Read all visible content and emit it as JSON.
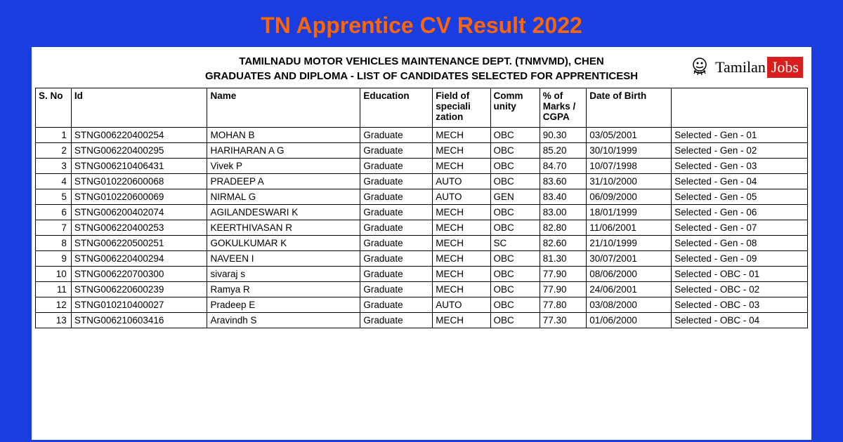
{
  "page_title": "TN Apprentice CV Result 2022",
  "doc_header_line1": "TAMILNADU MOTOR VEHICLES MAINTENANCE DEPT. (TNMVMD), CHEN",
  "doc_header_line2": "GRADUATES AND DIPLOMA - LIST OF CANDIDATES SELECTED FOR APPRENTICESH",
  "logo": {
    "tamilan": "Tamilan",
    "jobs": "Jobs"
  },
  "table": {
    "columns": [
      "S. No",
      "Id",
      "Name",
      "Education",
      "Field of speciali zation",
      "Comm unity",
      "% of Marks / CGPA",
      "Date of Birth",
      ""
    ],
    "rows": [
      [
        "1",
        "STNG006220400254",
        "MOHAN B",
        "Graduate",
        "MECH",
        "OBC",
        "90.30",
        "03/05/2001",
        "Selected - Gen - 01"
      ],
      [
        "2",
        "STNG006220400295",
        "HARIHARAN A G",
        "Graduate",
        "MECH",
        "OBC",
        "85.20",
        "30/10/1999",
        "Selected - Gen - 02"
      ],
      [
        "3",
        "STNG006210406431",
        "Vivek P",
        "Graduate",
        "MECH",
        "OBC",
        "84.70",
        "10/07/1998",
        "Selected - Gen - 03"
      ],
      [
        "4",
        "STNG010220600068",
        "PRADEEP A",
        "Graduate",
        "AUTO",
        "OBC",
        "83.60",
        "31/10/2000",
        "Selected - Gen - 04"
      ],
      [
        "5",
        "STNG010220600069",
        "NIRMAL G",
        "Graduate",
        "AUTO",
        "GEN",
        "83.40",
        "06/09/2000",
        "Selected - Gen - 05"
      ],
      [
        "6",
        "STNG006200402074",
        "AGILANDESWARI K",
        "Graduate",
        "MECH",
        "OBC",
        "83.00",
        "18/01/1999",
        "Selected - Gen - 06"
      ],
      [
        "7",
        "STNG006220400253",
        "KEERTHIVASAN R",
        "Graduate",
        "MECH",
        "OBC",
        "82.80",
        "11/06/2001",
        "Selected - Gen - 07"
      ],
      [
        "8",
        "STNG006220500251",
        "GOKULKUMAR K",
        "Graduate",
        "MECH",
        "SC",
        "82.60",
        "21/10/1999",
        "Selected - Gen - 08"
      ],
      [
        "9",
        "STNG006220400294",
        "NAVEEN I",
        "Graduate",
        "MECH",
        "OBC",
        "81.30",
        "30/07/2001",
        "Selected - Gen - 09"
      ],
      [
        "10",
        "STNG006220700300",
        "sivaraj s",
        "Graduate",
        "MECH",
        "OBC",
        "77.90",
        "08/06/2000",
        "Selected - OBC - 01"
      ],
      [
        "11",
        "STNG006220600239",
        "Ramya R",
        "Graduate",
        "MECH",
        "OBC",
        "77.90",
        "24/06/2001",
        "Selected - OBC - 02"
      ],
      [
        "12",
        "STNG010210400027",
        "Pradeep E",
        "Graduate",
        "AUTO",
        "OBC",
        "77.80",
        "03/08/2000",
        "Selected - OBC - 03"
      ],
      [
        "13",
        "STNG006210603416",
        "Aravindh S",
        "Graduate",
        "MECH",
        "OBC",
        "77.30",
        "01/06/2000",
        "Selected - OBC - 04"
      ]
    ]
  },
  "colors": {
    "background": "#1a3de0",
    "title": "#ff6600",
    "doc_bg": "#ffffff",
    "border": "#000000",
    "text": "#000000",
    "logo_red": "#d91e1e"
  }
}
